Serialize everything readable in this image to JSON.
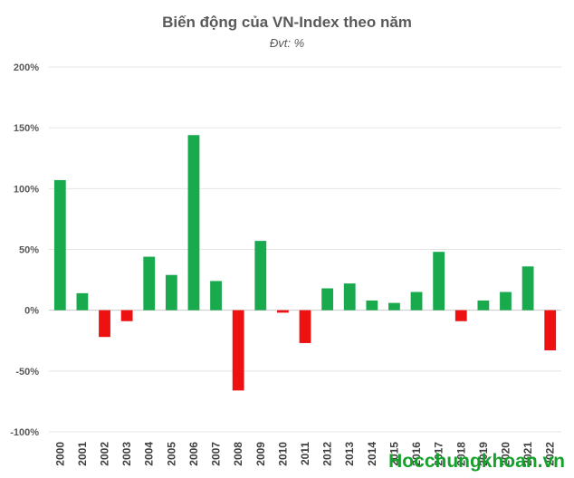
{
  "chart_data": {
    "type": "bar",
    "title": "Biến động của VN-Index theo năm",
    "subtitle": "Đvt: %",
    "xlabel": "",
    "ylabel": "",
    "ylim": [
      -100,
      200
    ],
    "yticks": [
      200,
      150,
      100,
      50,
      0,
      -50,
      -100
    ],
    "ytick_labels": [
      "200%",
      "150%",
      "100%",
      "50%",
      "0%",
      "-50%",
      "-100%"
    ],
    "grid": true,
    "legend": "none",
    "categories": [
      "2000",
      "2001",
      "2002",
      "2003",
      "2004",
      "2005",
      "2006",
      "2007",
      "2008",
      "2009",
      "2010",
      "2011",
      "2012",
      "2013",
      "2014",
      "2015",
      "2016",
      "2017",
      "2018",
      "2019",
      "2020",
      "2021",
      "2022"
    ],
    "values": [
      107,
      14,
      -22,
      -9,
      44,
      29,
      144,
      24,
      -66,
      57,
      -2,
      -27,
      18,
      22,
      8,
      6,
      15,
      48,
      -9,
      8,
      15,
      36,
      -33
    ],
    "colors": {
      "positive": "#1aaa4e",
      "negative": "#ee1111"
    }
  },
  "watermark": "Hocchungkhoan.vn"
}
